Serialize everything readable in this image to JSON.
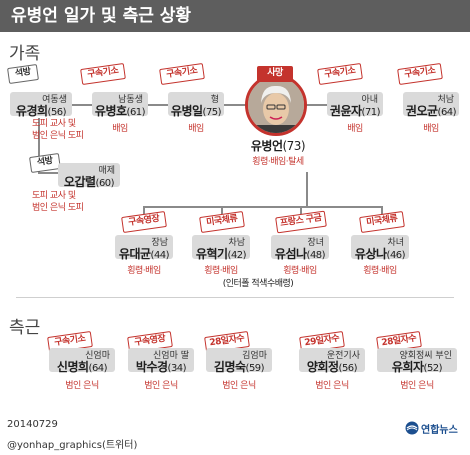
{
  "title": "유병언 일가 및 측근 상황",
  "sections": {
    "family": "가족",
    "associates": "측근"
  },
  "center": {
    "status_badge": "사망",
    "name": "유병언",
    "age": "(73)",
    "status": "횡령·배임·탈세"
  },
  "family_left": [
    {
      "tag": "석방",
      "relation": "여동생",
      "name": "유경희",
      "age": "(56)",
      "status_lines": [
        "도피 교사 및",
        "범인 은닉 도피"
      ]
    },
    {
      "tag": "구속기소",
      "relation": "남동생",
      "name": "유병호",
      "age": "(61)",
      "status_lines": [
        "배임"
      ]
    },
    {
      "tag": "구속기소",
      "relation": "형",
      "name": "유병일",
      "age": "(75)",
      "status_lines": [
        "배임"
      ]
    },
    {
      "tag": "석방",
      "relation": "매제",
      "name": "오갑렬",
      "age": "(60)",
      "status_lines": [
        "도피 교사 및",
        "범인 은닉 도피"
      ]
    }
  ],
  "family_right": [
    {
      "tag": "구속기소",
      "relation": "아내",
      "name": "권윤자",
      "age": "(71)",
      "status_lines": [
        "배임"
      ]
    },
    {
      "tag": "구속기소",
      "relation": "처남",
      "name": "권오균",
      "age": "(64)",
      "status_lines": [
        "배임"
      ]
    }
  ],
  "children": [
    {
      "tag": "구속영장",
      "relation": "장남",
      "name": "유대균",
      "age": "(44)",
      "status": "횡령·배임"
    },
    {
      "tag": "미국체류",
      "relation": "차남",
      "name": "유혁기",
      "age": "(42)",
      "status": "횡령·배임"
    },
    {
      "tag": "프랑스 구금",
      "relation": "장녀",
      "name": "유섬나",
      "age": "(48)",
      "status": "횡령·배임"
    },
    {
      "tag": "미국체류",
      "relation": "차녀",
      "name": "유상나",
      "age": "(46)",
      "status": "횡령·배임"
    }
  ],
  "interpol_note": "(인터폴 적색수배령)",
  "associates": [
    {
      "tag": "구속기소",
      "relation": "신엄마",
      "name": "신명희",
      "age": "(64)",
      "status": "범인 은닉"
    },
    {
      "tag": "구속영장",
      "relation": "신엄마 딸",
      "name": "박수경",
      "age": "(34)",
      "status": "범인 은닉"
    },
    {
      "tag": "28일자수",
      "relation": "김엄마",
      "name": "김명숙",
      "age": "(59)",
      "status": "범인 은닉"
    },
    {
      "tag": "29일자수",
      "relation": "운전기사",
      "name": "양회정",
      "age": "(56)",
      "status": "범인 은닉"
    },
    {
      "tag": "28일자수",
      "relation": "양회정씨 부인",
      "name": "유희자",
      "age": "(52)",
      "status": "범인 은닉"
    }
  ],
  "footer": {
    "date": "20140729",
    "credit": "@yonhap_graphics(트위터)",
    "logo_text": "연합뉴스"
  },
  "colors": {
    "header_bg": "#5e5e5e",
    "accent_red": "#c4332d",
    "card_bg": "#dadada"
  }
}
